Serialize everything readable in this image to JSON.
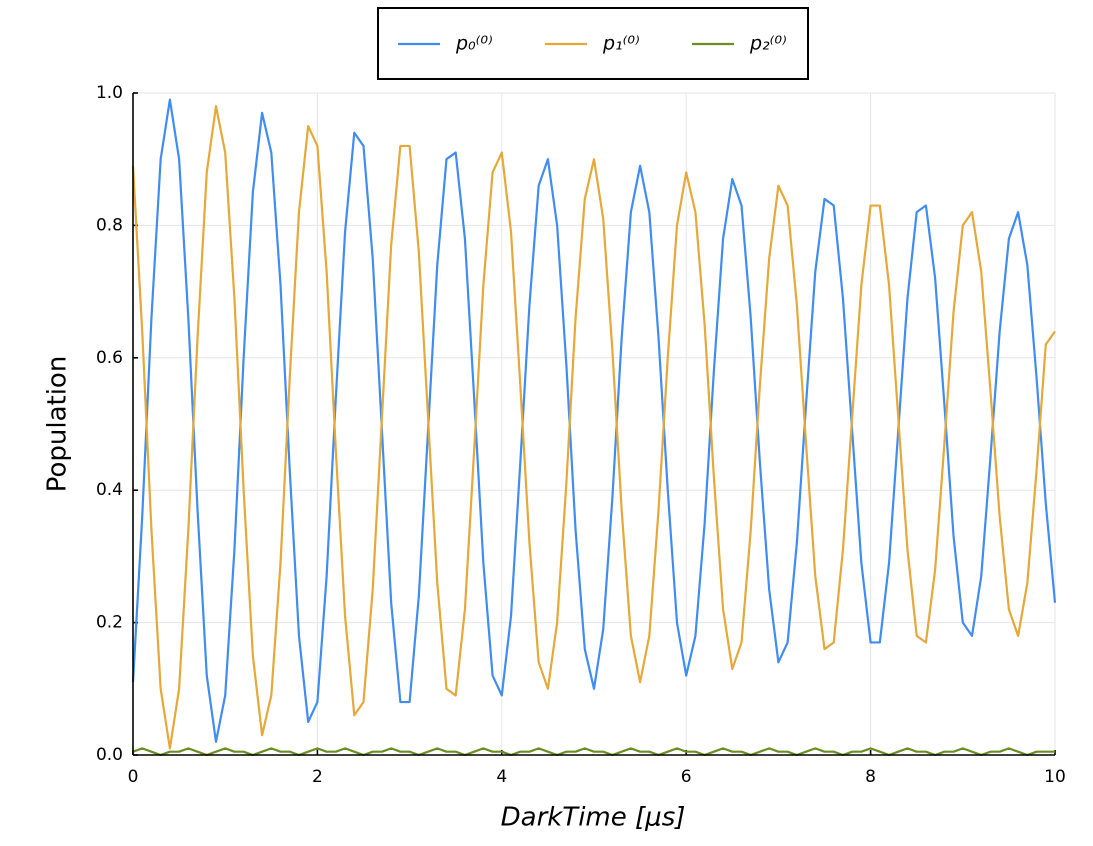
{
  "chart_data": {
    "type": "line",
    "xlabel": "DarkTime [μs]",
    "ylabel": "Population",
    "x": [
      0,
      0.1,
      0.2,
      0.3,
      0.4,
      0.5,
      0.6,
      0.7,
      0.8,
      0.9,
      1,
      1.1,
      1.2,
      1.3,
      1.4,
      1.5,
      1.6,
      1.7,
      1.8,
      1.9,
      2,
      2.1,
      2.2,
      2.3,
      2.4,
      2.5,
      2.6,
      2.7,
      2.8,
      2.9,
      3,
      3.1,
      3.2,
      3.3,
      3.4,
      3.5,
      3.6,
      3.7,
      3.8,
      3.9,
      4,
      4.1,
      4.2,
      4.3,
      4.4,
      4.5,
      4.6,
      4.7,
      4.8,
      4.9,
      5,
      5.1,
      5.2,
      5.3,
      5.4,
      5.5,
      5.6,
      5.7,
      5.8,
      5.9,
      6,
      6.1,
      6.2,
      6.3,
      6.4,
      6.5,
      6.6,
      6.7,
      6.8,
      6.9,
      7,
      7.1,
      7.2,
      7.3,
      7.4,
      7.5,
      7.6,
      7.7,
      7.8,
      7.9,
      8,
      8.1,
      8.2,
      8.3,
      8.4,
      8.5,
      8.6,
      8.7,
      8.8,
      8.9,
      9,
      9.1,
      9.2,
      9.3,
      9.4,
      9.5,
      9.6,
      9.7,
      9.8,
      9.9,
      10
    ],
    "series": [
      {
        "name": "p₀⁽⁰⁾",
        "color": "#3f8cf2",
        "values": [
          0.11,
          0.36,
          0.66,
          0.9,
          0.99,
          0.9,
          0.66,
          0.37,
          0.12,
          0.02,
          0.09,
          0.31,
          0.6,
          0.85,
          0.97,
          0.91,
          0.71,
          0.43,
          0.18,
          0.05,
          0.08,
          0.27,
          0.54,
          0.79,
          0.94,
          0.92,
          0.75,
          0.49,
          0.23,
          0.08,
          0.08,
          0.24,
          0.49,
          0.74,
          0.9,
          0.91,
          0.78,
          0.54,
          0.29,
          0.12,
          0.09,
          0.21,
          0.44,
          0.68,
          0.86,
          0.9,
          0.8,
          0.59,
          0.34,
          0.16,
          0.1,
          0.19,
          0.39,
          0.63,
          0.82,
          0.89,
          0.82,
          0.63,
          0.4,
          0.2,
          0.12,
          0.18,
          0.35,
          0.58,
          0.78,
          0.87,
          0.83,
          0.66,
          0.44,
          0.25,
          0.14,
          0.17,
          0.32,
          0.53,
          0.73,
          0.84,
          0.83,
          0.69,
          0.49,
          0.29,
          0.17,
          0.17,
          0.29,
          0.49,
          0.69,
          0.82,
          0.83,
          0.72,
          0.53,
          0.33,
          0.2,
          0.18,
          0.27,
          0.45,
          0.64,
          0.78,
          0.82,
          0.74,
          0.57,
          0.38,
          0.23
        ]
      },
      {
        "name": "p₁⁽⁰⁾",
        "color": "#e6a839",
        "values": [
          0.89,
          0.64,
          0.34,
          0.1,
          0.01,
          0.1,
          0.34,
          0.63,
          0.88,
          0.98,
          0.91,
          0.69,
          0.4,
          0.15,
          0.03,
          0.09,
          0.29,
          0.57,
          0.82,
          0.95,
          0.92,
          0.73,
          0.46,
          0.21,
          0.06,
          0.08,
          0.25,
          0.51,
          0.77,
          0.92,
          0.92,
          0.76,
          0.51,
          0.26,
          0.1,
          0.09,
          0.22,
          0.46,
          0.71,
          0.88,
          0.91,
          0.79,
          0.56,
          0.32,
          0.14,
          0.1,
          0.2,
          0.41,
          0.66,
          0.84,
          0.9,
          0.81,
          0.61,
          0.37,
          0.18,
          0.11,
          0.18,
          0.37,
          0.6,
          0.8,
          0.88,
          0.82,
          0.65,
          0.42,
          0.22,
          0.13,
          0.17,
          0.34,
          0.56,
          0.75,
          0.86,
          0.83,
          0.68,
          0.47,
          0.27,
          0.16,
          0.17,
          0.31,
          0.51,
          0.71,
          0.83,
          0.83,
          0.71,
          0.51,
          0.31,
          0.18,
          0.17,
          0.28,
          0.47,
          0.67,
          0.8,
          0.82,
          0.73,
          0.55,
          0.36,
          0.22,
          0.18,
          0.26,
          0.43,
          0.62,
          0.64
        ]
      },
      {
        "name": "p₂⁽⁰⁾",
        "color": "#6b8e23",
        "values": [
          0.005,
          0.01,
          0.005,
          0,
          0.005,
          0.005,
          0.01,
          0.005,
          0,
          0.005,
          0.01,
          0.005,
          0.005,
          0,
          0.005,
          0.01,
          0.005,
          0.005,
          0,
          0.005,
          0.01,
          0.005,
          0.005,
          0.01,
          0.005,
          0,
          0.005,
          0.005,
          0.01,
          0.005,
          0.005,
          0,
          0.005,
          0.01,
          0.005,
          0.005,
          0,
          0.005,
          0.01,
          0.005,
          0.005,
          0,
          0.005,
          0.005,
          0.01,
          0.005,
          0,
          0.005,
          0.005,
          0.01,
          0.005,
          0.005,
          0,
          0.005,
          0.01,
          0.005,
          0.005,
          0,
          0.005,
          0.01,
          0.005,
          0.005,
          0,
          0.005,
          0.01,
          0.005,
          0.005,
          0,
          0.005,
          0.01,
          0.005,
          0.005,
          0,
          0.005,
          0.01,
          0.005,
          0.005,
          0,
          0.005,
          0.005,
          0.01,
          0.005,
          0,
          0.005,
          0.01,
          0.005,
          0.005,
          0,
          0.005,
          0.005,
          0.01,
          0.005,
          0,
          0.005,
          0.005,
          0.01,
          0.005,
          0,
          0.005,
          0.005,
          0.005
        ]
      }
    ],
    "xlim": [
      0,
      10
    ],
    "xticks": [
      0,
      2,
      4,
      6,
      8,
      10
    ],
    "ylim": [
      0,
      1
    ],
    "yticks": [
      {
        "value": 0,
        "label": "0.0"
      },
      0.2,
      0.4,
      0.6,
      0.8,
      {
        "value": 1,
        "label": "1.0"
      }
    ],
    "grid": true,
    "legend": "top"
  }
}
